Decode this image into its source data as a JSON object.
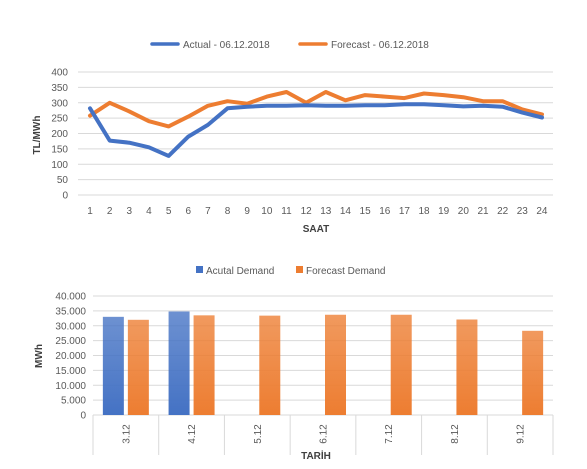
{
  "chart_data": [
    {
      "type": "line",
      "x": [
        1,
        2,
        3,
        4,
        5,
        6,
        7,
        8,
        9,
        10,
        11,
        12,
        13,
        14,
        15,
        16,
        17,
        18,
        19,
        20,
        21,
        22,
        23,
        24
      ],
      "xlabel": "SAAT",
      "ylabel": "TL/MWh",
      "ylim": [
        0,
        400
      ],
      "yticks": [
        0,
        50,
        100,
        150,
        200,
        250,
        300,
        350,
        400
      ],
      "grid": true,
      "legend_position": "top",
      "series": [
        {
          "name": "Actual - 06.12.2018",
          "color": "#4472c4",
          "values": [
            282,
            177,
            170,
            155,
            127,
            190,
            228,
            282,
            287,
            290,
            290,
            292,
            290,
            290,
            292,
            292,
            295,
            295,
            292,
            288,
            290,
            287,
            268,
            252
          ]
        },
        {
          "name": "Forecast - 06.12.2018",
          "color": "#ed7d31",
          "values": [
            258,
            300,
            272,
            240,
            223,
            255,
            290,
            305,
            297,
            320,
            335,
            300,
            335,
            308,
            325,
            320,
            315,
            330,
            325,
            318,
            305,
            305,
            278,
            262
          ]
        }
      ]
    },
    {
      "type": "bar",
      "categories": [
        "3.12",
        "4.12",
        "5.12",
        "6.12",
        "7.12",
        "8.12",
        "9.12"
      ],
      "xlabel": "TARİH",
      "ylabel": "MWh",
      "ylim": [
        0,
        40000
      ],
      "yticks": [
        "0",
        "5.000",
        "10.000",
        "15.000",
        "20.000",
        "25.000",
        "30.000",
        "35.000",
        "40.000"
      ],
      "ytick_values": [
        0,
        5000,
        10000,
        15000,
        20000,
        25000,
        30000,
        35000,
        40000
      ],
      "grid": true,
      "legend_position": "top",
      "series": [
        {
          "name": "Acutal Demand",
          "color": "#4472c4",
          "values": [
            33000,
            34800,
            null,
            null,
            null,
            null,
            null
          ]
        },
        {
          "name": "Forecast Demand",
          "color": "#ed7d31",
          "values": [
            32000,
            33500,
            33400,
            33700,
            33700,
            32100,
            28300
          ]
        }
      ]
    }
  ]
}
